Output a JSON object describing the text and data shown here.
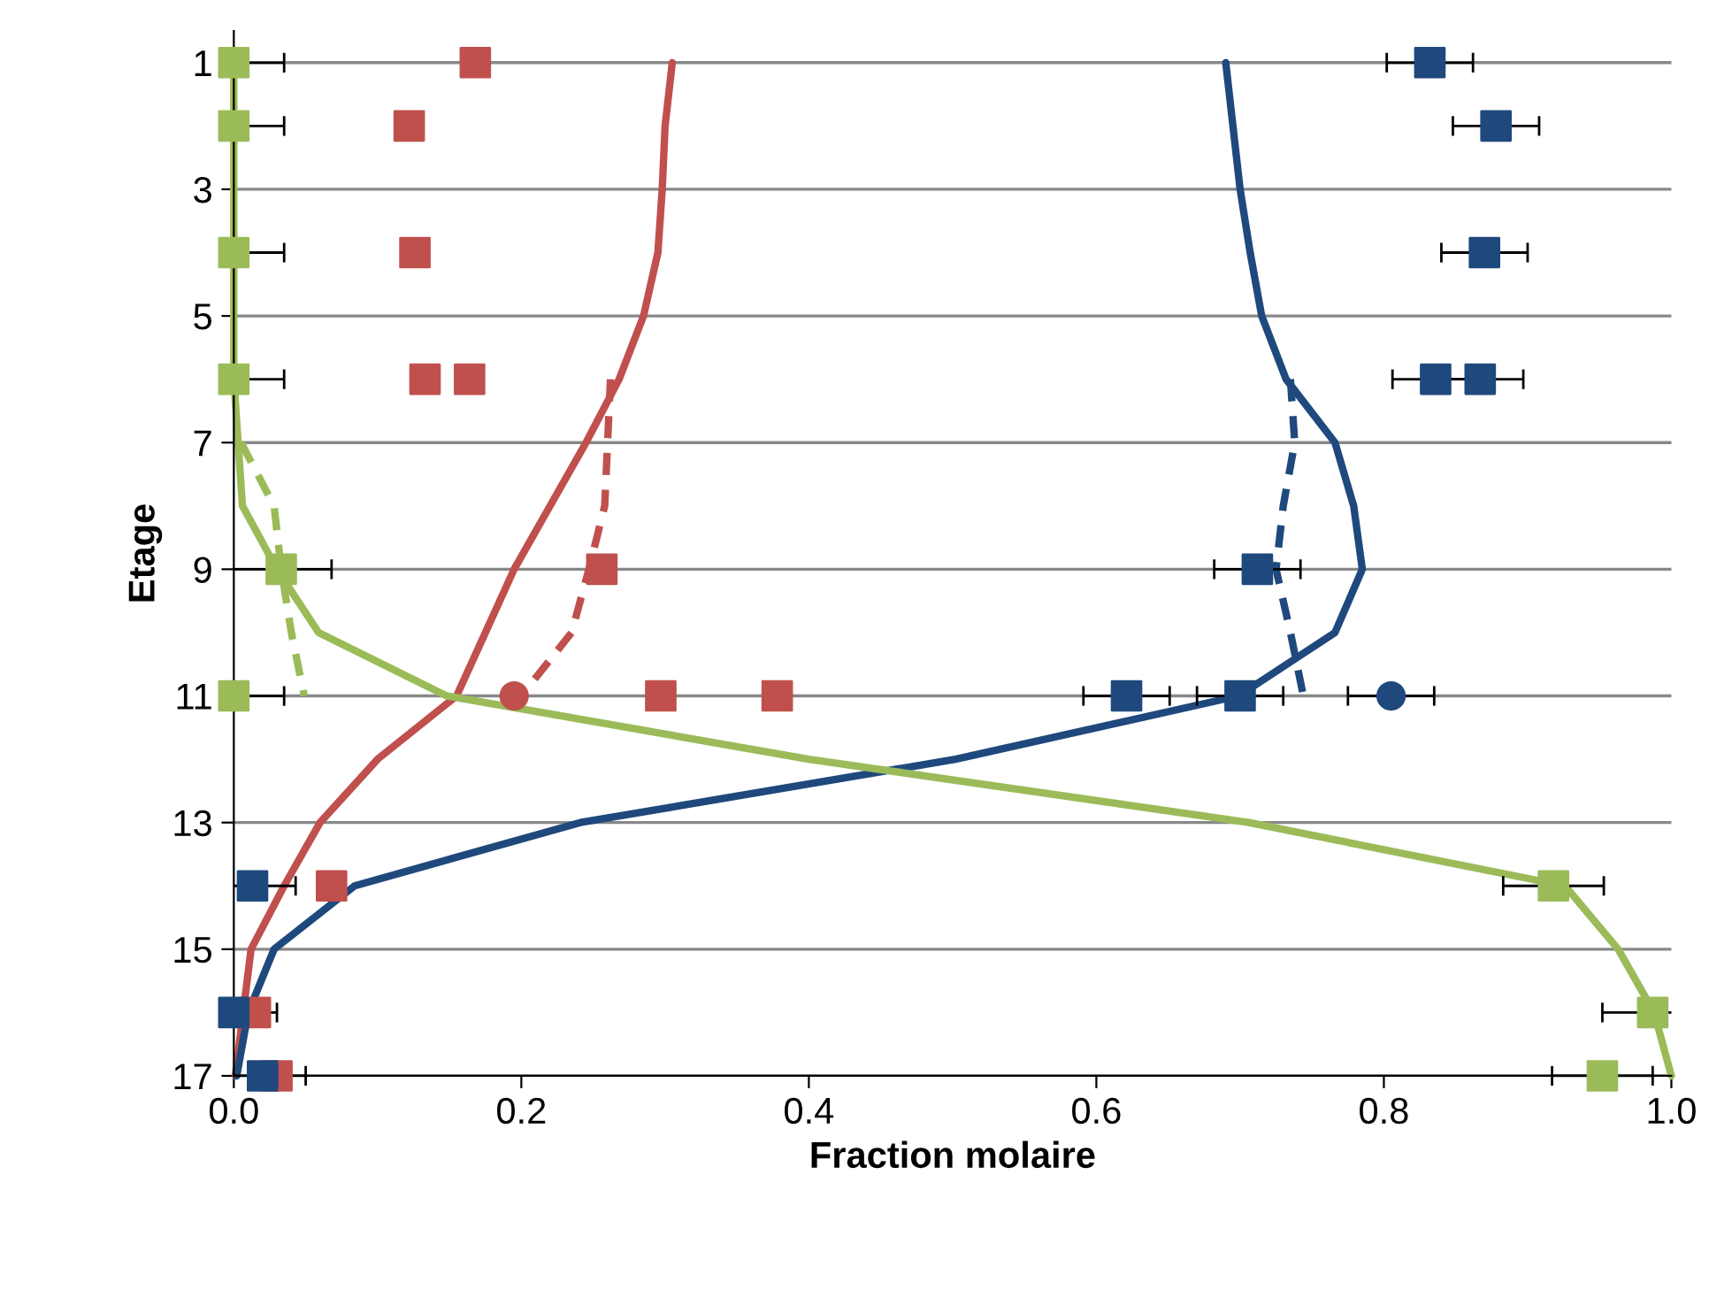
{
  "chart_data": {
    "type": "line",
    "xlabel": "Fraction molaire",
    "ylabel": "Etage",
    "xlim": [
      0,
      1
    ],
    "ylim": [
      17,
      0.5
    ],
    "xticks": [
      {
        "value": 0,
        "label": "0.0"
      },
      {
        "value": 0.2,
        "label": "0.2"
      },
      {
        "value": 0.4,
        "label": "0.4"
      },
      {
        "value": 0.6,
        "label": "0.6"
      },
      {
        "value": 0.8,
        "label": "0.8"
      },
      {
        "value": 1,
        "label": "1.0"
      }
    ],
    "yticks": [
      1,
      3,
      5,
      7,
      9,
      11,
      13,
      15,
      17
    ],
    "grid": "y",
    "legend": false,
    "series": [
      {
        "color": "#c0504d",
        "line_style": "solid",
        "marker": "none",
        "x": [
          0.305,
          0.3,
          0.298,
          0.295,
          0.285,
          0.268,
          0.245,
          0.22,
          0.195,
          0.175,
          0.155,
          0.1,
          0.06,
          0.035,
          0.012,
          0.001
        ],
        "values": [
          1,
          2,
          3,
          4,
          5,
          6,
          7,
          8,
          9,
          10,
          11,
          12,
          13,
          14,
          15,
          17
        ]
      },
      {
        "color": "#1f497d",
        "line_style": "solid",
        "marker": "none",
        "x": [
          0.69,
          0.695,
          0.7,
          0.707,
          0.715,
          0.732,
          0.766,
          0.779,
          0.785,
          0.766,
          0.699,
          0.502,
          0.241,
          0.084,
          0.028,
          0.01,
          0.002
        ],
        "values": [
          1,
          2,
          3,
          4,
          5,
          6,
          7,
          8,
          9,
          10,
          11,
          12,
          13,
          14,
          15,
          16,
          17
        ]
      },
      {
        "color": "#9bbb59",
        "line_style": "solid",
        "marker": "none",
        "x": [
          0,
          0,
          0,
          0,
          0,
          0,
          0.003,
          0.006,
          0.03,
          0.059,
          0.148,
          0.4,
          0.706,
          0.926,
          0.963,
          0.988,
          1.0
        ],
        "values": [
          1,
          2,
          3,
          4,
          5,
          6,
          7,
          8,
          9,
          10,
          11,
          12,
          13,
          14,
          15,
          16,
          17
        ]
      },
      {
        "color": "#c0504d",
        "line_style": "dashed",
        "marker": "none",
        "x": [
          0.262,
          0.26,
          0.258,
          0.247,
          0.235,
          0.2
        ],
        "values": [
          6,
          7,
          8,
          9,
          10,
          11
        ]
      },
      {
        "color": "#1f497d",
        "line_style": "dashed",
        "marker": "none",
        "x": [
          0.735,
          0.738,
          0.73,
          0.725,
          0.735,
          0.744
        ],
        "values": [
          6,
          7,
          8,
          9,
          10,
          11
        ]
      },
      {
        "color": "#9bbb59",
        "line_style": "dashed",
        "marker": "none",
        "x": [
          0.005,
          0.028,
          0.033,
          0.04,
          0.049
        ],
        "values": [
          7,
          8,
          9,
          10,
          11
        ]
      },
      {
        "type": "scatter",
        "color": "#c0504d",
        "marker": "square",
        "x": [
          0.168,
          0.122,
          0.126,
          0.133,
          0.164,
          0.256,
          0.297,
          0.378,
          0.068,
          0.015,
          0.03
        ],
        "values": [
          1,
          2,
          4,
          6,
          6,
          9,
          11,
          11,
          14,
          16,
          17
        ]
      },
      {
        "type": "scatter",
        "color": "#c0504d",
        "marker": "circle",
        "x": [
          0.195
        ],
        "values": [
          11
        ]
      },
      {
        "type": "scatter",
        "color": "#1f497d",
        "marker": "square",
        "x": [
          0.832,
          0.878,
          0.87,
          0.836,
          0.867,
          0.712,
          0.621,
          0.7,
          0.013,
          0,
          0.02
        ],
        "values": [
          1,
          2,
          4,
          6,
          6,
          9,
          11,
          11,
          14,
          16,
          17
        ],
        "xerrors": [
          0.03,
          0.03,
          0.03,
          0.03,
          0.03,
          0.03,
          0.03,
          0.03,
          0.03,
          0.03,
          0.03
        ]
      },
      {
        "type": "scatter",
        "color": "#1f497d",
        "marker": "circle",
        "x": [
          0.805
        ],
        "values": [
          11
        ],
        "xerrors": [
          0.03
        ]
      },
      {
        "type": "scatter",
        "color": "#9bbb59",
        "marker": "square",
        "x": [
          0,
          0,
          0,
          0,
          0.033,
          0,
          0.918,
          0.987,
          0.952
        ],
        "values": [
          1,
          2,
          4,
          6,
          9,
          11,
          14,
          16,
          17
        ],
        "xerrors": [
          0.035,
          0.035,
          0.035,
          0.035,
          0.035,
          0.035,
          0.035,
          0.035,
          0.035
        ]
      }
    ]
  }
}
